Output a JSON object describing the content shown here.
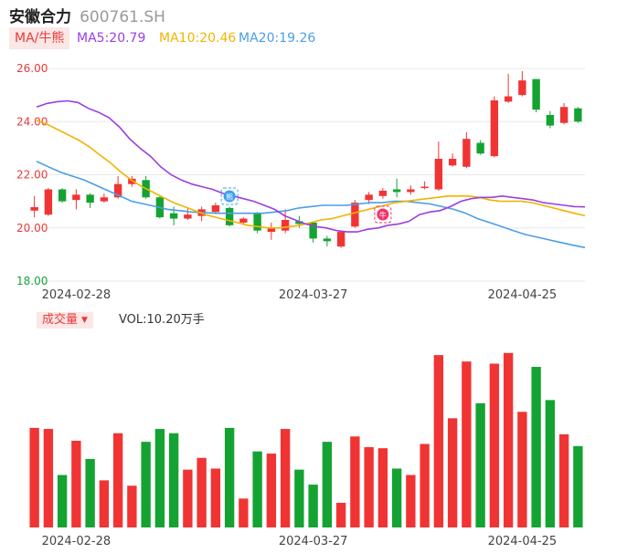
{
  "header": {
    "name": "安徽合力",
    "code": "600761.SH"
  },
  "ma_legend": {
    "toggle_label": "MA/牛熊",
    "ma5": "MA5:20.79",
    "ma10": "MA10:20.46",
    "ma20": "MA20:19.26"
  },
  "volume_legend": {
    "toggle_label": "成交量",
    "value": "VOL:10.20万手"
  },
  "colors": {
    "up": "#f03434",
    "down": "#14a332",
    "ma5": "#9b3fe0",
    "ma10": "#f0b400",
    "ma20": "#4a9ee8",
    "grid": "#e8e8e8"
  },
  "markers": [
    {
      "index": 14,
      "label": "熊",
      "icon": "bear-badge-icon",
      "color": "#3ca0f0"
    },
    {
      "index": 25,
      "label": "牛",
      "icon": "bull-badge-icon",
      "color": "#f03468"
    }
  ],
  "chart_data": [
    {
      "type": "candlestick",
      "title": "",
      "x_tick_labels": [
        "2024-02-28",
        "2024-03-27",
        "2024-04-25"
      ],
      "x_tick_indices": [
        3,
        20,
        35
      ],
      "y_ticks": [
        "26.00",
        "24.00",
        "22.00",
        "20.00",
        "18.00"
      ],
      "ylim": [
        18,
        26
      ],
      "candles": [
        {
          "o": 20.65,
          "c": 20.78,
          "h": 21.2,
          "l": 20.4
        },
        {
          "o": 20.5,
          "c": 21.45,
          "h": 21.5,
          "l": 20.45
        },
        {
          "o": 21.45,
          "c": 21.0,
          "h": 21.5,
          "l": 20.95
        },
        {
          "o": 21.05,
          "c": 21.25,
          "h": 21.45,
          "l": 20.7
        },
        {
          "o": 21.25,
          "c": 20.95,
          "h": 21.3,
          "l": 20.75
        },
        {
          "o": 21.0,
          "c": 21.15,
          "h": 21.3,
          "l": 20.95
        },
        {
          "o": 21.15,
          "c": 21.65,
          "h": 21.95,
          "l": 21.1
        },
        {
          "o": 21.65,
          "c": 21.85,
          "h": 21.95,
          "l": 21.55
        },
        {
          "o": 21.8,
          "c": 21.15,
          "h": 21.95,
          "l": 21.1
        },
        {
          "o": 21.15,
          "c": 20.4,
          "h": 21.2,
          "l": 20.35
        },
        {
          "o": 20.55,
          "c": 20.35,
          "h": 20.8,
          "l": 20.1
        },
        {
          "o": 20.35,
          "c": 20.5,
          "h": 20.75,
          "l": 20.3
        },
        {
          "o": 20.45,
          "c": 20.7,
          "h": 20.8,
          "l": 20.25
        },
        {
          "o": 20.6,
          "c": 20.85,
          "h": 20.95,
          "l": 20.55
        },
        {
          "o": 20.75,
          "c": 20.1,
          "h": 20.8,
          "l": 20.05
        },
        {
          "o": 20.2,
          "c": 20.35,
          "h": 20.4,
          "l": 20.15
        },
        {
          "o": 20.55,
          "c": 19.9,
          "h": 20.6,
          "l": 19.8
        },
        {
          "o": 19.85,
          "c": 20.0,
          "h": 20.2,
          "l": 19.55
        },
        {
          "o": 19.9,
          "c": 20.3,
          "h": 20.7,
          "l": 19.8
        },
        {
          "o": 20.25,
          "c": 20.15,
          "h": 20.45,
          "l": 20.0
        },
        {
          "o": 20.2,
          "c": 19.6,
          "h": 20.25,
          "l": 19.45
        },
        {
          "o": 19.6,
          "c": 19.5,
          "h": 19.7,
          "l": 19.3
        },
        {
          "o": 19.3,
          "c": 19.85,
          "h": 19.9,
          "l": 19.25
        },
        {
          "o": 20.05,
          "c": 20.95,
          "h": 21.05,
          "l": 20.0
        },
        {
          "o": 21.05,
          "c": 21.25,
          "h": 21.35,
          "l": 20.9
        },
        {
          "o": 21.2,
          "c": 21.4,
          "h": 21.5,
          "l": 21.1
        },
        {
          "o": 21.45,
          "c": 21.35,
          "h": 21.85,
          "l": 21.15
        },
        {
          "o": 21.35,
          "c": 21.45,
          "h": 21.6,
          "l": 21.25
        },
        {
          "o": 21.5,
          "c": 21.55,
          "h": 21.75,
          "l": 21.45
        },
        {
          "o": 21.45,
          "c": 22.6,
          "h": 23.25,
          "l": 21.4
        },
        {
          "o": 22.35,
          "c": 22.6,
          "h": 22.8,
          "l": 22.3
        },
        {
          "o": 22.3,
          "c": 23.35,
          "h": 23.6,
          "l": 22.25
        },
        {
          "o": 23.2,
          "c": 22.8,
          "h": 23.3,
          "l": 22.75
        },
        {
          "o": 22.7,
          "c": 24.8,
          "h": 24.95,
          "l": 22.65
        },
        {
          "o": 24.75,
          "c": 24.95,
          "h": 25.8,
          "l": 24.7
        },
        {
          "o": 25.0,
          "c": 25.55,
          "h": 25.9,
          "l": 24.95
        },
        {
          "o": 25.6,
          "c": 24.45,
          "h": 25.6,
          "l": 24.35
        },
        {
          "o": 24.25,
          "c": 23.85,
          "h": 24.4,
          "l": 23.75
        },
        {
          "o": 23.95,
          "c": 24.55,
          "h": 24.7,
          "l": 23.9
        },
        {
          "o": 24.5,
          "c": 24.0,
          "h": 24.55,
          "l": 23.95
        }
      ],
      "ma5": [
        24.55,
        24.68,
        24.75,
        24.78,
        24.72,
        24.5,
        24.35,
        24.15,
        23.8,
        23.35,
        23.0,
        22.7,
        22.3,
        22.0,
        21.8,
        21.65,
        21.55,
        21.45,
        21.3,
        21.2,
        21.1,
        21.0,
        20.85,
        20.7,
        20.45,
        20.3,
        20.15,
        20.05,
        20.0,
        19.9,
        19.85,
        19.85,
        19.95,
        20.0,
        20.1,
        20.15,
        20.25,
        20.5,
        20.6,
        20.65,
        20.8,
        21.0,
        21.1,
        21.15,
        21.15,
        21.2,
        21.15,
        21.1,
        21.05,
        20.95,
        20.9,
        20.85,
        20.8,
        20.79
      ],
      "ma10": [
        24.05,
        23.9,
        23.7,
        23.5,
        23.3,
        23.05,
        22.75,
        22.45,
        22.1,
        21.8,
        21.55,
        21.35,
        21.15,
        20.95,
        20.8,
        20.65,
        20.5,
        20.4,
        20.3,
        20.2,
        20.1,
        20.05,
        20.0,
        20.0,
        20.05,
        20.1,
        20.2,
        20.3,
        20.35,
        20.45,
        20.55,
        20.65,
        20.75,
        20.85,
        20.95,
        21.0,
        21.05,
        21.1,
        21.15,
        21.2,
        21.2,
        21.2,
        21.15,
        21.05,
        21.0,
        21.0,
        21.0,
        20.95,
        20.85,
        20.75,
        20.65,
        20.55,
        20.46
      ],
      "ma20": [
        22.5,
        22.3,
        22.1,
        21.95,
        21.8,
        21.6,
        21.4,
        21.2,
        21.0,
        20.9,
        20.8,
        20.7,
        20.65,
        20.6,
        20.58,
        20.55,
        20.55,
        20.55,
        20.55,
        20.55,
        20.6,
        20.65,
        20.75,
        20.8,
        20.85,
        20.85,
        20.85,
        20.9,
        20.95,
        20.95,
        21.0,
        21.0,
        20.95,
        20.9,
        20.8,
        20.7,
        20.55,
        20.35,
        20.2,
        20.05,
        19.9,
        19.75,
        19.65,
        19.55,
        19.45,
        19.35,
        19.26
      ]
    },
    {
      "type": "bar",
      "title": "",
      "x_tick_labels": [
        "2024-02-28",
        "2024-03-27",
        "2024-04-25"
      ],
      "values": [
        9.3,
        9.2,
        4.9,
        8.1,
        6.4,
        4.4,
        8.8,
        3.9,
        8.0,
        9.2,
        8.8,
        5.4,
        6.5,
        5.5,
        9.3,
        2.7,
        7.1,
        6.9,
        9.2,
        5.4,
        4.0,
        8.0,
        2.3,
        8.5,
        7.5,
        7.4,
        5.5,
        4.9,
        7.8,
        16.1,
        10.2,
        15.5,
        11.6,
        15.3,
        16.3,
        10.8,
        15.0,
        11.9,
        8.7,
        7.6
      ],
      "unit": "万手"
    }
  ]
}
